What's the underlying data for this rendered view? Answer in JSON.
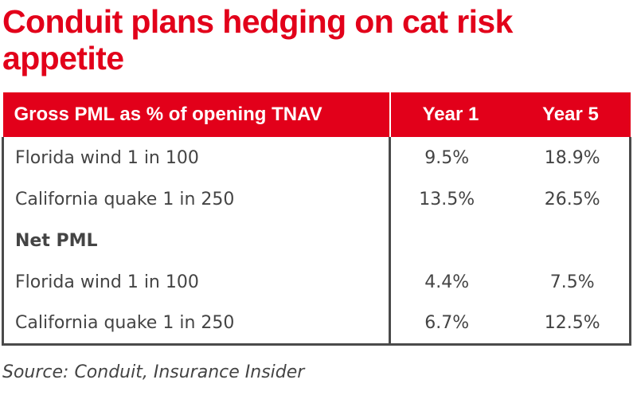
{
  "title": "Conduit plans hedging on cat risk appetite",
  "table": {
    "headers": [
      "Gross PML as % of opening TNAV",
      "Year 1",
      "Year 5"
    ],
    "rows": [
      {
        "label": "Florida wind 1 in 100",
        "year1": "9.5%",
        "year5": "18.9%",
        "section": false
      },
      {
        "label": "California quake 1 in 250",
        "year1": "13.5%",
        "year5": "26.5%",
        "section": false
      },
      {
        "label": "Net PML",
        "year1": "",
        "year5": "",
        "section": true
      },
      {
        "label": "Florida wind 1 in 100",
        "year1": "4.4%",
        "year5": "7.5%",
        "section": false
      },
      {
        "label": "California quake 1 in 250",
        "year1": "6.7%",
        "year5": "12.5%",
        "section": false
      }
    ]
  },
  "source": "Source: Conduit, Insurance Insider",
  "colors": {
    "accent": "#e2001a",
    "text": "#444444",
    "border": "#4a4a4a"
  }
}
